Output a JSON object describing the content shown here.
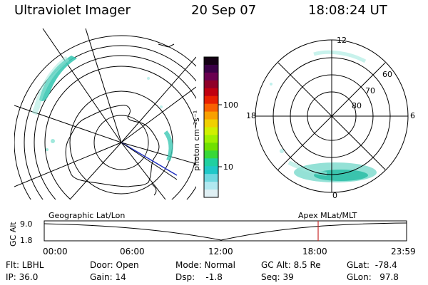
{
  "header": {
    "title": "Ultraviolet Imager",
    "date": "20 Sep 07",
    "time": "18:08:24 UT"
  },
  "left_map": {
    "label": "Geographic Lat/Lon",
    "aurora_color": "#3cc8b4",
    "track_color": "#2030c0"
  },
  "right_map": {
    "label": "Apex MLat/MLT",
    "mlt_labels": [
      "12",
      "18",
      "6",
      "0"
    ],
    "mlat_labels": [
      "60",
      "70",
      "80"
    ]
  },
  "colorbar": {
    "unit_label": "photon cm⁻²s⁻¹",
    "tick_labels": [
      "100",
      "10"
    ],
    "colors_top_to_bottom": [
      "#140014",
      "#3a0046",
      "#6a0050",
      "#900028",
      "#c00010",
      "#e82000",
      "#f86000",
      "#f8a000",
      "#f0d000",
      "#d0f000",
      "#a0f000",
      "#70e000",
      "#38d838",
      "#20d0a0",
      "#20c8c8",
      "#70d8e0",
      "#b0e8f0",
      "#e0f0f4"
    ]
  },
  "timeline": {
    "y_axis_label": "GC Alt",
    "y_ticks": [
      "9.0",
      "1.8"
    ],
    "x_ticks": [
      "00:00",
      "06:00",
      "12:00",
      "18:00",
      "23:59"
    ],
    "current_marker_color": "#c82828"
  },
  "footer": {
    "flt": "Flt: LBHL",
    "ip": "IP: 36.0",
    "door": "Door: Open",
    "gain": "Gain: 14",
    "mode": "Mode: Normal",
    "dsp": "Dsp:    -1.8",
    "gc_alt": "GC Alt: 8.5 Re",
    "seq": "Seq: 39",
    "glat": "GLat:  -78.4",
    "glon": "GLon:   97.8"
  }
}
